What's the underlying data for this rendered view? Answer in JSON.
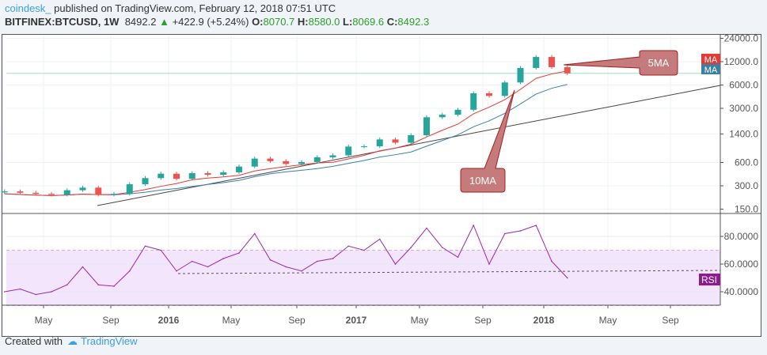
{
  "header": {
    "publisher": "coindesk_",
    "published_text": "published on TradingView.com, February 12, 2018 07:51 UTC",
    "symbol": "BITFINEX:BTCUSD, 1W",
    "last": "8492.2",
    "change": "+422.9 (+5.24%)",
    "open_label": "O:",
    "open": "8070.7",
    "high_label": "H:",
    "high": "8580.0",
    "low_label": "L:",
    "low": "8069.6",
    "close_label": "C:",
    "close": "8492.3"
  },
  "footer": {
    "created_with": "Created with",
    "brand": "TradingView"
  },
  "colors": {
    "up": "#26a69a",
    "down": "#ef5350",
    "ma5": "#e53935",
    "ma10": "#3b7fa3",
    "rsi": "#9c27b0",
    "rsi_band": "#f3e5fb"
  },
  "chart_data": [
    {
      "type": "candlestick",
      "scale": "log",
      "y_ticks": [
        24000,
        12000,
        6000,
        3000,
        1400,
        600,
        300,
        150
      ],
      "x_ticks": [
        "May",
        "Sep",
        "2016",
        "May",
        "Sep",
        "2017",
        "May",
        "Sep",
        "2018",
        "May",
        "Sep"
      ],
      "months": [
        "2015-02",
        "2015-03",
        "2015-04",
        "2015-05",
        "2015-06",
        "2015-07",
        "2015-08",
        "2015-09",
        "2015-10",
        "2015-11",
        "2015-12",
        "2016-01",
        "2016-02",
        "2016-03",
        "2016-04",
        "2016-05",
        "2016-06",
        "2016-07",
        "2016-08",
        "2016-09",
        "2016-10",
        "2016-11",
        "2016-12",
        "2017-01",
        "2017-02",
        "2017-03",
        "2017-04",
        "2017-05",
        "2017-06",
        "2017-07",
        "2017-08",
        "2017-09",
        "2017-10",
        "2017-11",
        "2017-12",
        "2018-01",
        "2018-02"
      ],
      "closes": [
        254,
        244,
        236,
        230,
        263,
        284,
        230,
        236,
        314,
        377,
        430,
        369,
        437,
        416,
        448,
        531,
        673,
        624,
        575,
        608,
        700,
        742,
        963,
        970,
        1190,
        1080,
        1350,
        2300,
        2480,
        2875,
        4700,
        4340,
        6470,
        9950,
        13800,
        10200,
        8492
      ],
      "current_price": 8492.2,
      "legend": [
        {
          "label": "MA",
          "color": "#e53935"
        },
        {
          "label": "MA",
          "color": "#3b7fa3"
        }
      ],
      "annotations": [
        "5MA",
        "10MA"
      ]
    },
    {
      "type": "line",
      "name": "RSI",
      "y_ticks": [
        80,
        60,
        40
      ],
      "band": [
        30,
        70
      ],
      "values": [
        40,
        42,
        38,
        40,
        45,
        58,
        45,
        44,
        55,
        73,
        70,
        55,
        62,
        58,
        64,
        68,
        82,
        63,
        58,
        55,
        62,
        64,
        73,
        70,
        78,
        60,
        72,
        86,
        72,
        65,
        88,
        60,
        82,
        84,
        88,
        62,
        50
      ]
    }
  ]
}
